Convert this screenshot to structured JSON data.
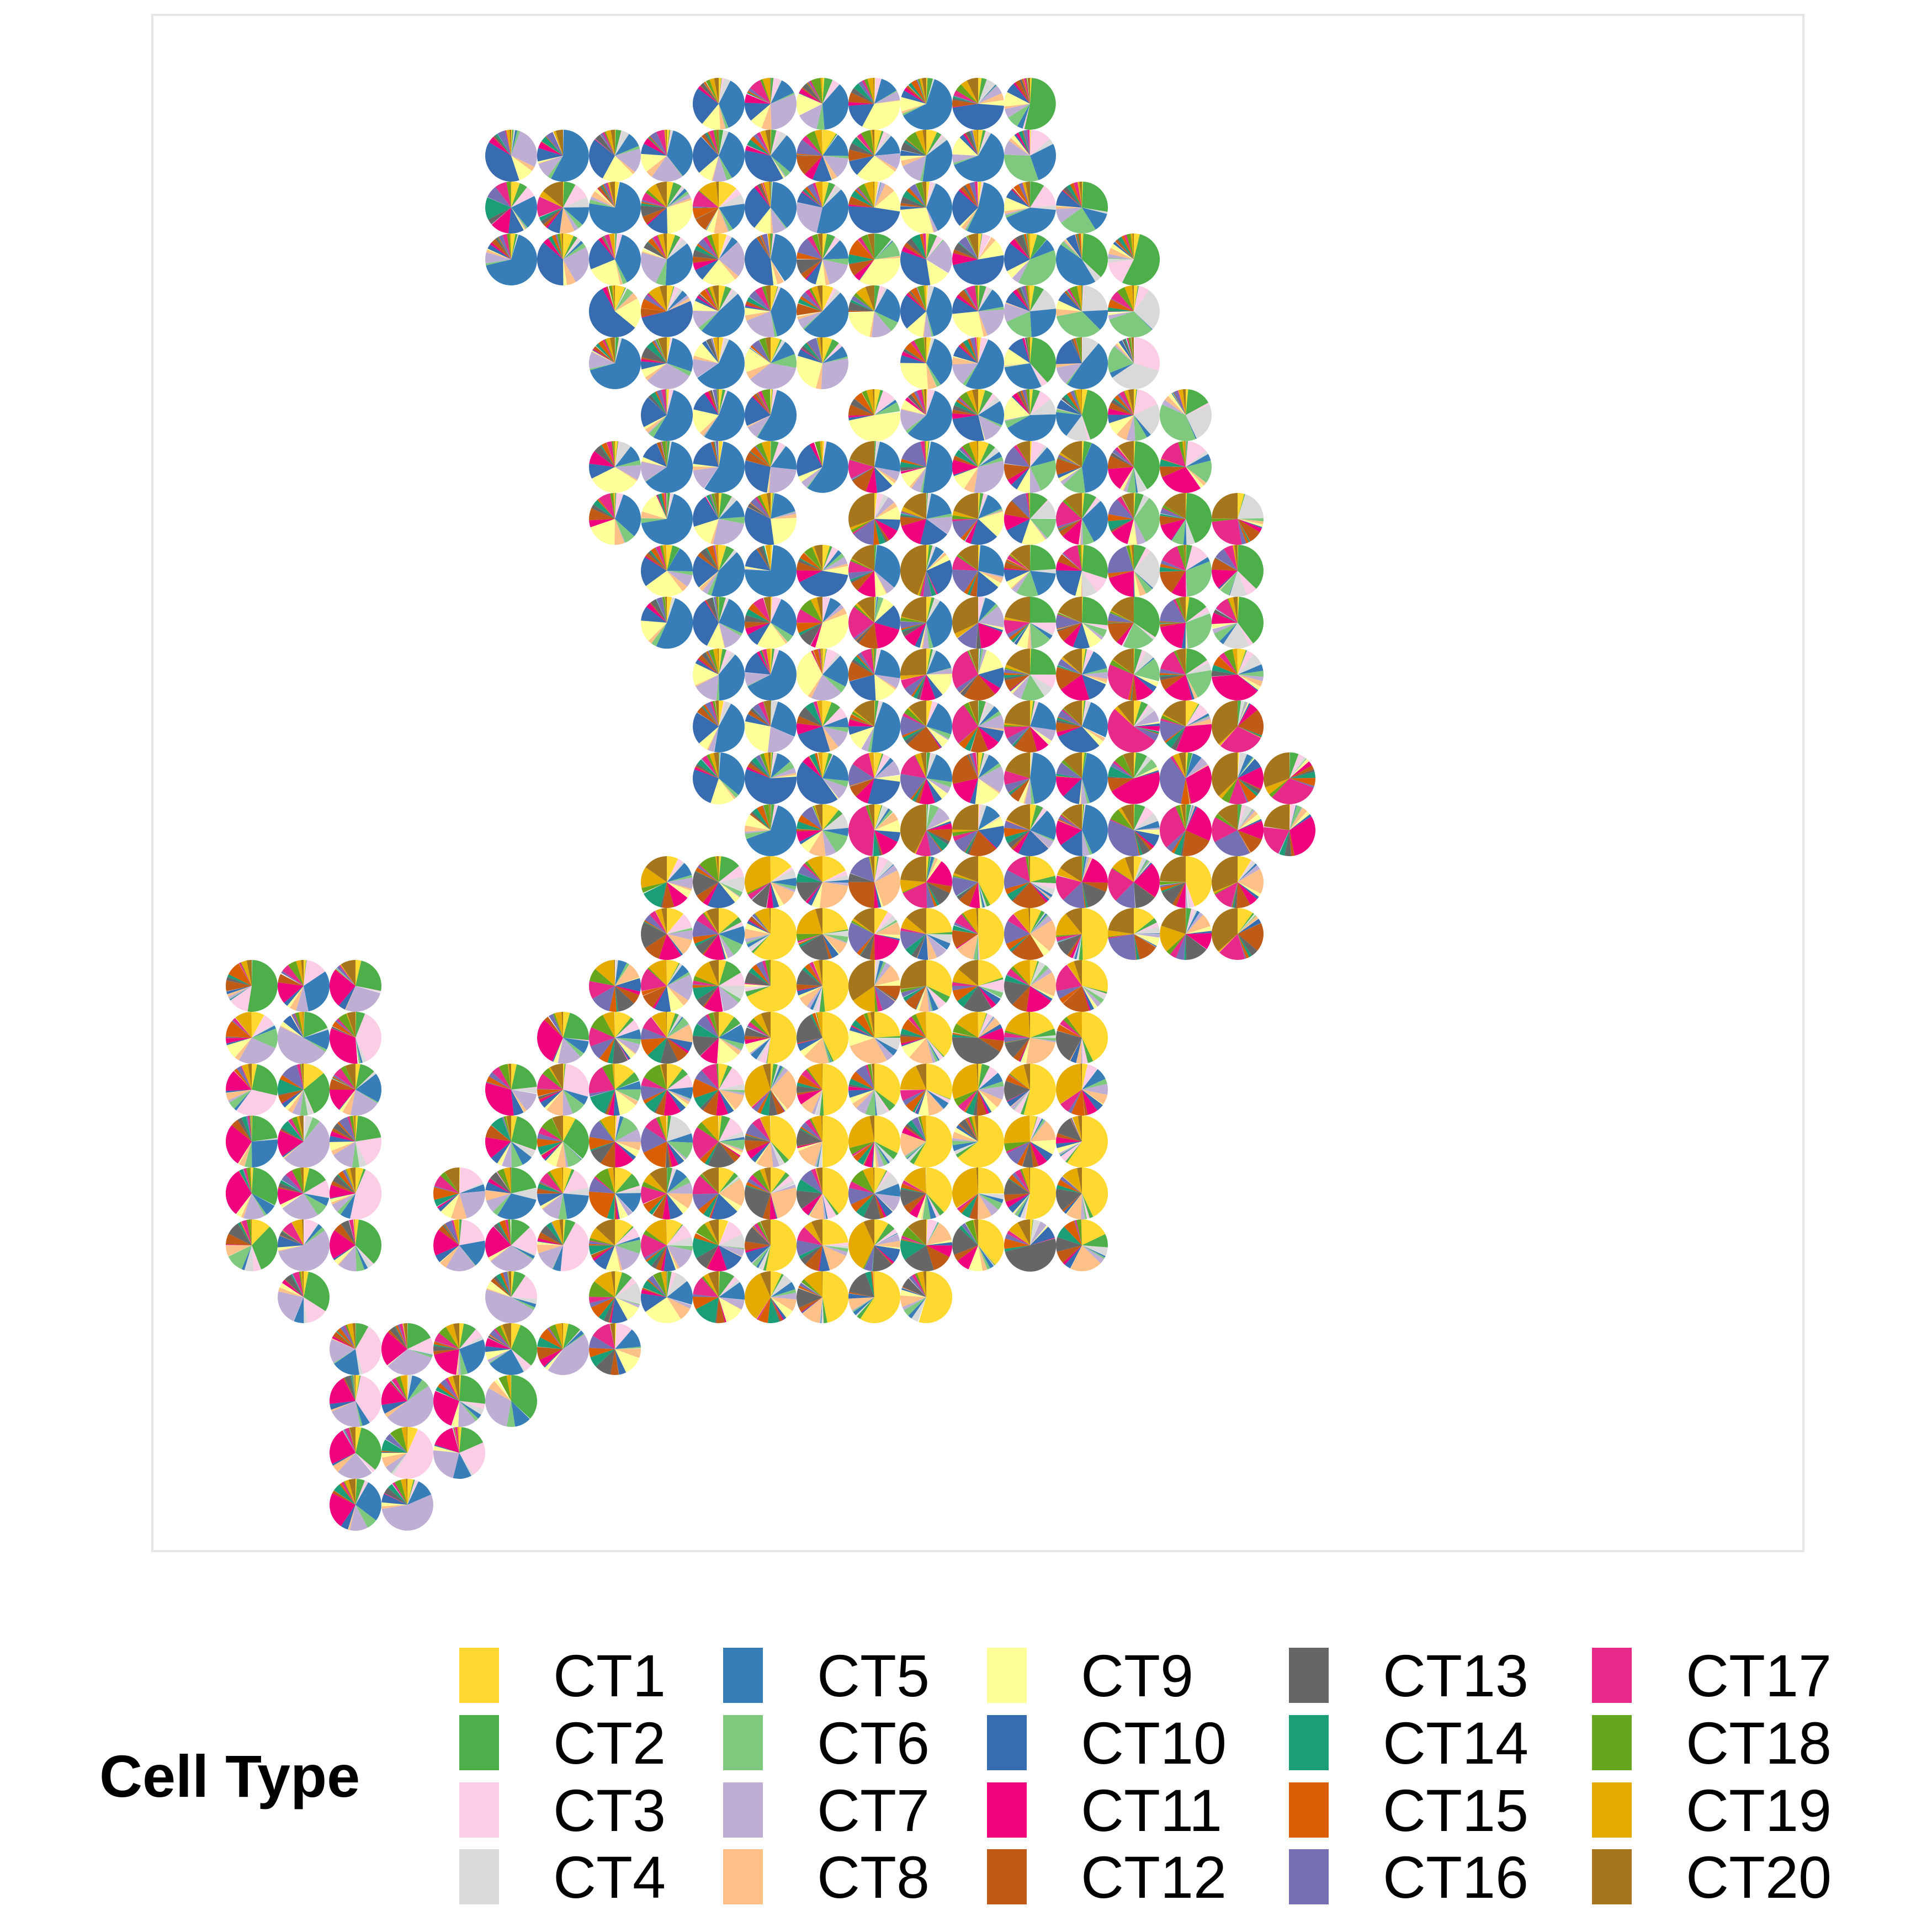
{
  "chart_data": {
    "type": "scatter-pie",
    "title": "",
    "xlabel": "",
    "ylabel": "",
    "grid": false,
    "legend": {
      "title": "Cell Type",
      "placement": "bottom",
      "columns": 6,
      "items": [
        {
          "label": "CT1",
          "color": "#FFD92F"
        },
        {
          "label": "CT2",
          "color": "#4DAF4A"
        },
        {
          "label": "CT3",
          "color": "#FCCDE5"
        },
        {
          "label": "CT4",
          "color": "#D9D9D9"
        },
        {
          "label": "CT5",
          "color": "#377EB8"
        },
        {
          "label": "CT6",
          "color": "#7FC97F"
        },
        {
          "label": "CT7",
          "color": "#BEAED4"
        },
        {
          "label": "CT8",
          "color": "#FDC086"
        },
        {
          "label": "CT9",
          "color": "#FFFF99"
        },
        {
          "label": "CT10",
          "color": "#386CB0"
        },
        {
          "label": "CT11",
          "color": "#F0027F"
        },
        {
          "label": "CT12",
          "color": "#BF5B17"
        },
        {
          "label": "CT13",
          "color": "#666666"
        },
        {
          "label": "CT14",
          "color": "#1B9E77"
        },
        {
          "label": "CT15",
          "color": "#D95F02"
        },
        {
          "label": "CT16",
          "color": "#7570B3"
        },
        {
          "label": "CT17",
          "color": "#E7298A"
        },
        {
          "label": "CT18",
          "color": "#66A61E"
        },
        {
          "label": "CT19",
          "color": "#E6AB02"
        },
        {
          "label": "CT20",
          "color": "#A6761D"
        }
      ]
    },
    "spot_rows": [
      [
        5,
        11,
        0
      ],
      [
        1,
        11,
        1
      ],
      [
        1,
        12,
        2
      ],
      [
        1,
        13,
        3
      ],
      [
        3,
        13,
        4
      ],
      [
        3,
        13,
        5
      ],
      [
        4,
        14,
        6
      ],
      [
        3,
        14,
        7
      ],
      [
        3,
        15,
        8
      ],
      [
        4,
        15,
        9
      ],
      [
        4,
        15,
        10
      ],
      [
        5,
        15,
        11
      ],
      [
        5,
        15,
        12
      ],
      [
        5,
        16,
        13
      ],
      [
        6,
        16,
        14
      ],
      [
        4,
        15,
        15
      ],
      [
        4,
        15,
        16
      ],
      [
        -4,
        12,
        17
      ],
      [
        -4,
        12,
        18
      ],
      [
        -4,
        12,
        19
      ],
      [
        -4,
        12,
        20
      ],
      [
        -4,
        12,
        21
      ],
      [
        -4,
        12,
        22
      ],
      [
        -3,
        9,
        23
      ],
      [
        -2,
        3,
        24
      ],
      [
        -2,
        1,
        25
      ],
      [
        -2,
        0,
        26
      ],
      [
        -2,
        -1,
        27
      ],
      [
        -2,
        0,
        28
      ]
    ],
    "gaps": [
      [
        7,
        1,
        6
      ],
      [
        8,
        1,
        5
      ],
      [
        7,
        1,
        8
      ],
      [
        -1,
        1,
        17
      ],
      [
        -1,
        1,
        18
      ],
      [
        -1,
        1,
        19
      ],
      [
        -1,
        1,
        20
      ],
      [
        -1,
        1,
        21
      ],
      [
        -1,
        1,
        22
      ],
      [
        2,
        1,
        23
      ],
      [
        0,
        3,
        17
      ],
      [
        0,
        2,
        18
      ],
      [
        0,
        1,
        19
      ],
      [
        0,
        1,
        20
      ],
      [
        -2,
        3,
        23
      ]
    ],
    "dominant_regions": [
      {
        "region": "upper-right",
        "dominant": [
          "CT2",
          "CT6",
          "CT4"
        ]
      },
      {
        "region": "upper-left",
        "dominant": [
          "CT5",
          "CT10",
          "CT9"
        ]
      },
      {
        "region": "center",
        "dominant": [
          "CT20",
          "CT17",
          "CT11",
          "CT12"
        ]
      },
      {
        "region": "lower-center",
        "dominant": [
          "CT1",
          "CT19",
          "CT13"
        ]
      },
      {
        "region": "lower-left",
        "dominant": [
          "CT3",
          "CT7",
          "CT2",
          "CT11"
        ]
      }
    ]
  }
}
